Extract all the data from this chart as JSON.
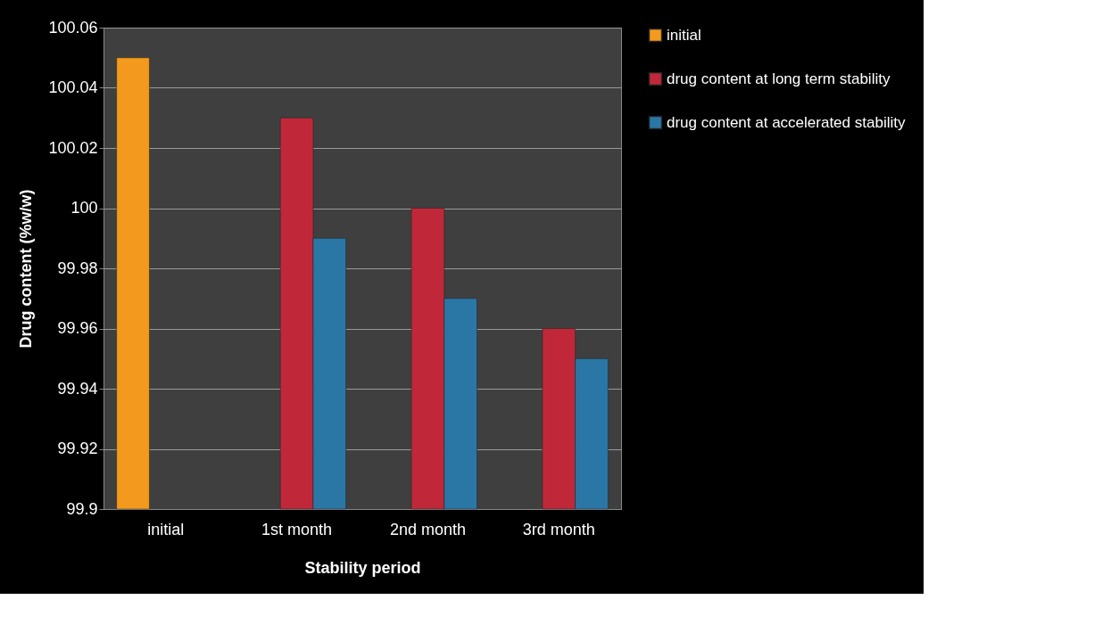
{
  "chart_data": {
    "type": "bar",
    "xlabel": "Stability period",
    "ylabel": "Drug content (%w/w)",
    "categories": [
      "initial",
      "1st month",
      "2nd month",
      "3rd month"
    ],
    "series": [
      {
        "name": "initial",
        "color": "#f39a1e",
        "values": [
          100.05,
          null,
          null,
          null
        ]
      },
      {
        "name": "drug content at long term stability",
        "color": "#c0283a",
        "values": [
          null,
          100.03,
          100.0,
          99.96
        ]
      },
      {
        "name": "drug content at accelerated stability",
        "color": "#2a77a6",
        "values": [
          null,
          99.99,
          99.97,
          99.95
        ]
      }
    ],
    "ylim": [
      99.9,
      100.06
    ],
    "yticks": [
      99.9,
      99.92,
      99.94,
      99.96,
      99.98,
      100,
      100.02,
      100.04,
      100.06
    ],
    "grid": "y",
    "legend": "right"
  }
}
